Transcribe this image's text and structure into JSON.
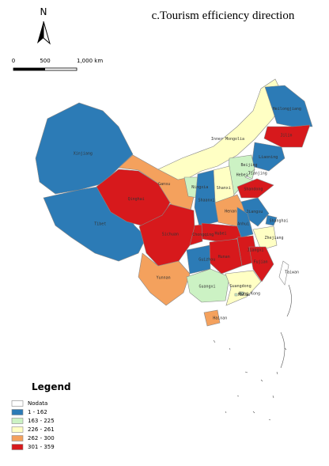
{
  "title": "c.Tourism efficiency direction",
  "north": "N",
  "scale": {
    "labels": [
      "0",
      "500",
      "1,000 km"
    ]
  },
  "legend": {
    "title": "Legend",
    "items": [
      {
        "label": "Nodata",
        "color": "#ffffff"
      },
      {
        "label": "1 - 162",
        "color": "#2c7bb6"
      },
      {
        "label": "163 - 225",
        "color": "#ccf2c4"
      },
      {
        "label": "226 - 261",
        "color": "#ffffc4"
      },
      {
        "label": "262 - 300",
        "color": "#f4a15d"
      },
      {
        "label": "301 - 359",
        "color": "#d7191c"
      }
    ]
  },
  "provinces": [
    {
      "name": "Xinjiang",
      "color": "#2c7bb6"
    },
    {
      "name": "Tibet",
      "color": "#2c7bb6"
    },
    {
      "name": "Qinghai",
      "color": "#d7191c"
    },
    {
      "name": "Gansu",
      "color": "#f4a15d"
    },
    {
      "name": "Inner Mongolia",
      "color": "#ffffc4"
    },
    {
      "name": "Heilongjiang",
      "color": "#2c7bb6"
    },
    {
      "name": "Jilin",
      "color": "#d7191c"
    },
    {
      "name": "Liaoning",
      "color": "#2c7bb6"
    },
    {
      "name": "Beijing",
      "color": "#ccf2c4"
    },
    {
      "name": "Tianjing",
      "color": "#ccf2c4"
    },
    {
      "name": "Hebei",
      "color": "#ccf2c4"
    },
    {
      "name": "Shanxi",
      "color": "#ffffc4"
    },
    {
      "name": "Ningxia",
      "color": "#ccf2c4"
    },
    {
      "name": "Shaanxi",
      "color": "#2c7bb6"
    },
    {
      "name": "Henan",
      "color": "#f4a15d"
    },
    {
      "name": "Shandong",
      "color": "#d7191c"
    },
    {
      "name": "Jiangsu",
      "color": "#2c7bb6"
    },
    {
      "name": "Shanghai",
      "color": "#2c7bb6"
    },
    {
      "name": "Anhui",
      "color": "#2c7bb6"
    },
    {
      "name": "Zhejiang",
      "color": "#ffffc4"
    },
    {
      "name": "Hubei",
      "color": "#d7191c"
    },
    {
      "name": "Chongqing",
      "color": "#d7191c"
    },
    {
      "name": "Sichuan",
      "color": "#d7191c"
    },
    {
      "name": "Jiangxi",
      "color": "#d7191c"
    },
    {
      "name": "Hunan",
      "color": "#d7191c"
    },
    {
      "name": "Guizhou",
      "color": "#2c7bb6"
    },
    {
      "name": "Yunnan",
      "color": "#f4a15d"
    },
    {
      "name": "Guangxi",
      "color": "#ccf2c4"
    },
    {
      "name": "Guangdong",
      "color": "#ffffc4"
    },
    {
      "name": "Fujian",
      "color": "#d7191c"
    },
    {
      "name": "Taiwan",
      "color": "#ffffff"
    },
    {
      "name": "Hainan",
      "color": "#f4a15d"
    },
    {
      "name": "Hong Kong",
      "color": "#ccf2c4"
    },
    {
      "name": "Macau",
      "color": "#ccf2c4"
    }
  ]
}
